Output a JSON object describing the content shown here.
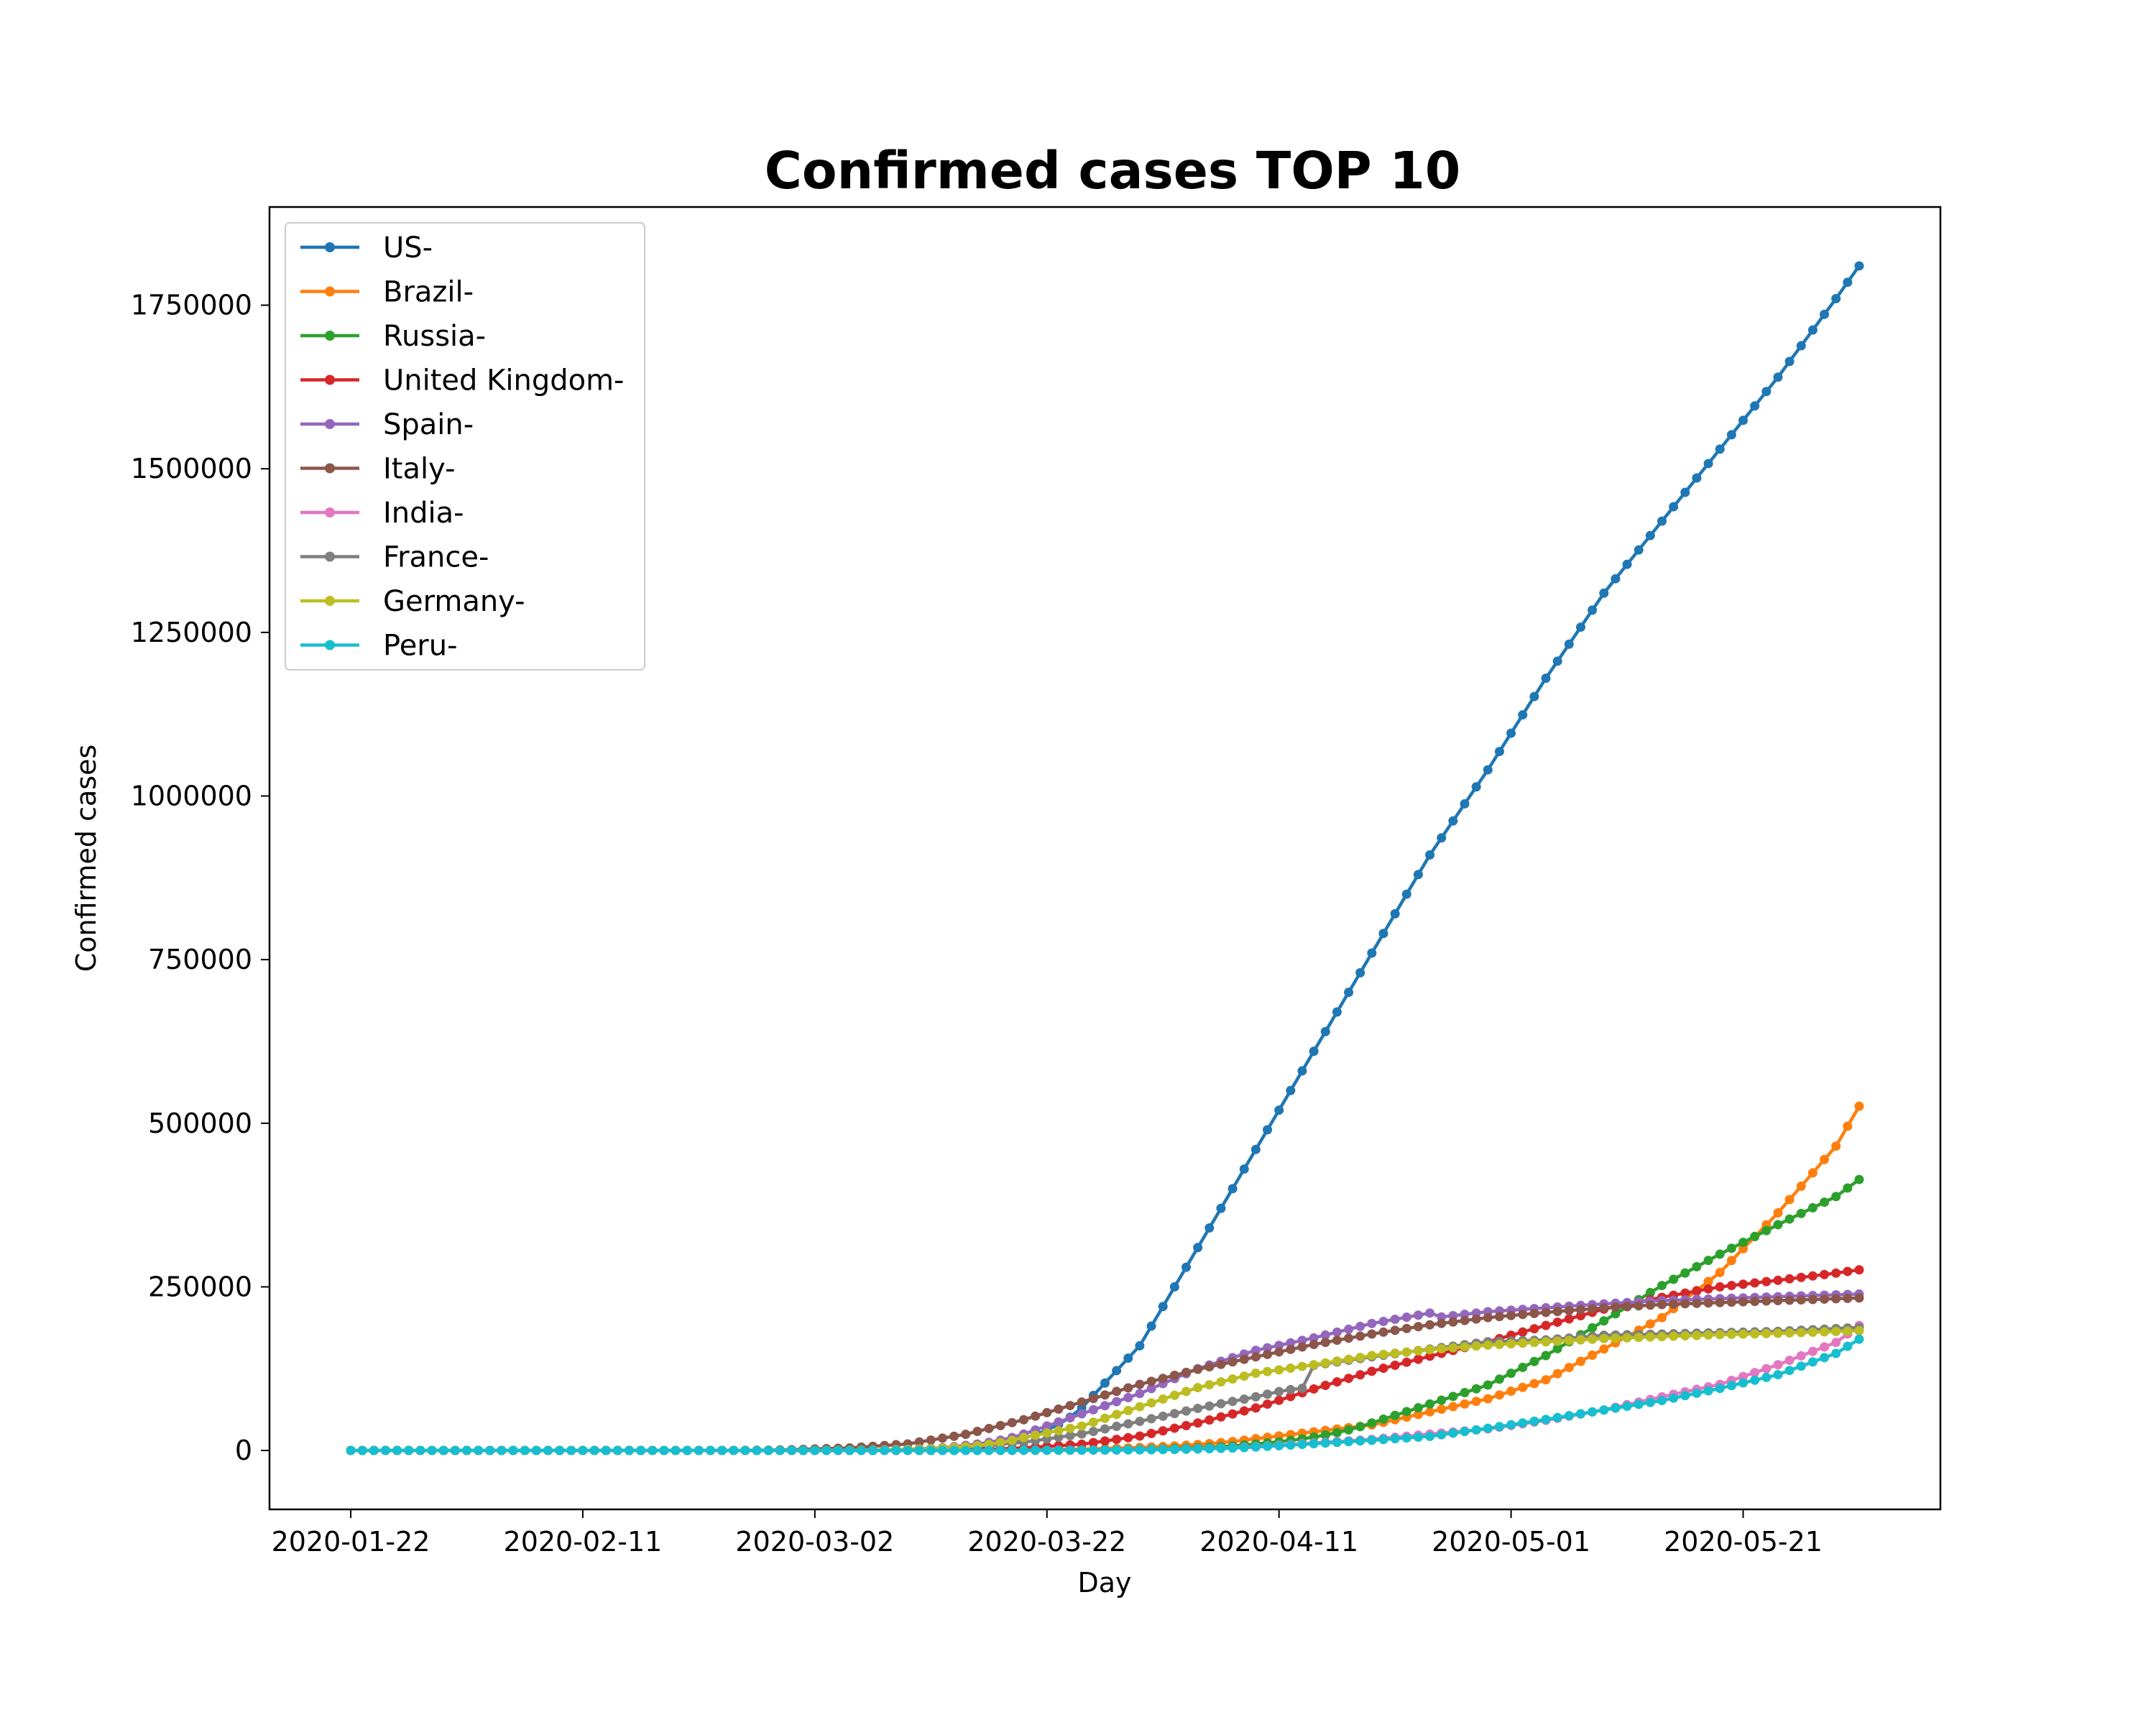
{
  "chart_data": {
    "type": "line",
    "title": "Confirmed cases TOP 10",
    "xlabel": "Day",
    "ylabel": "Confirmed cases",
    "x_start": "2020-01-22",
    "x_end": "2020-05-31",
    "xlim": [
      "2020-01-15",
      "2020-06-07"
    ],
    "ylim": [
      -90000,
      1900000
    ],
    "x_ticks": [
      "2020-01-22",
      "2020-02-11",
      "2020-03-02",
      "2020-03-22",
      "2020-04-11",
      "2020-05-01",
      "2020-05-21"
    ],
    "y_ticks": [
      0,
      250000,
      500000,
      750000,
      1000000,
      1250000,
      1500000,
      1750000
    ],
    "grid": false,
    "legend_position": "upper left",
    "series": [
      {
        "name": "US-",
        "color": "#1f77b4",
        "values": [
          [
            "2020-03-01",
            30
          ],
          [
            "2020-03-08",
            500
          ],
          [
            "2020-03-15",
            3500
          ],
          [
            "2020-03-20",
            19000
          ],
          [
            "2020-03-25",
            65000
          ],
          [
            "2020-03-30",
            160000
          ],
          [
            "2020-04-04",
            310000
          ],
          [
            "2020-04-09",
            460000
          ],
          [
            "2020-04-14",
            610000
          ],
          [
            "2020-04-19",
            760000
          ],
          [
            "2020-04-24",
            910000
          ],
          [
            "2020-04-29",
            1040000
          ],
          [
            "2020-05-04",
            1180000
          ],
          [
            "2020-05-09",
            1310000
          ],
          [
            "2020-05-14",
            1420000
          ],
          [
            "2020-05-19",
            1530000
          ],
          [
            "2020-05-24",
            1640000
          ],
          [
            "2020-05-29",
            1760000
          ],
          [
            "2020-05-31",
            1810000
          ]
        ]
      },
      {
        "name": "Brazil-",
        "color": "#ff7f0e",
        "values": [
          [
            "2020-03-10",
            30
          ],
          [
            "2020-03-20",
            1000
          ],
          [
            "2020-03-30",
            4600
          ],
          [
            "2020-04-09",
            18000
          ],
          [
            "2020-04-19",
            39000
          ],
          [
            "2020-04-29",
            79000
          ],
          [
            "2020-05-04",
            108000
          ],
          [
            "2020-05-09",
            155000
          ],
          [
            "2020-05-14",
            203000
          ],
          [
            "2020-05-19",
            272000
          ],
          [
            "2020-05-24",
            363000
          ],
          [
            "2020-05-29",
            465000
          ],
          [
            "2020-05-31",
            526000
          ]
        ]
      },
      {
        "name": "Russia-",
        "color": "#2ca02c",
        "values": [
          [
            "2020-03-10",
            20
          ],
          [
            "2020-03-20",
            250
          ],
          [
            "2020-03-30",
            1800
          ],
          [
            "2020-04-09",
            10000
          ],
          [
            "2020-04-19",
            42000
          ],
          [
            "2020-04-29",
            100000
          ],
          [
            "2020-05-04",
            145000
          ],
          [
            "2020-05-09",
            198000
          ],
          [
            "2020-05-14",
            252000
          ],
          [
            "2020-05-19",
            300000
          ],
          [
            "2020-05-24",
            345000
          ],
          [
            "2020-05-29",
            388000
          ],
          [
            "2020-05-31",
            414000
          ]
        ]
      },
      {
        "name": "United Kingdom-",
        "color": "#d62728",
        "values": [
          [
            "2020-03-01",
            40
          ],
          [
            "2020-03-10",
            400
          ],
          [
            "2020-03-20",
            4000
          ],
          [
            "2020-03-25",
            9500
          ],
          [
            "2020-03-30",
            22000
          ],
          [
            "2020-04-04",
            42000
          ],
          [
            "2020-04-09",
            65000
          ],
          [
            "2020-04-14",
            94000
          ],
          [
            "2020-04-19",
            121000
          ],
          [
            "2020-04-24",
            144000
          ],
          [
            "2020-04-29",
            166000
          ],
          [
            "2020-05-04",
            191000
          ],
          [
            "2020-05-09",
            216000
          ],
          [
            "2020-05-14",
            234000
          ],
          [
            "2020-05-19",
            250000
          ],
          [
            "2020-05-24",
            260000
          ],
          [
            "2020-05-29",
            271000
          ],
          [
            "2020-05-31",
            276000
          ]
        ]
      },
      {
        "name": "Spain-",
        "color": "#9467bd",
        "values": [
          [
            "2020-03-01",
            80
          ],
          [
            "2020-03-10",
            1700
          ],
          [
            "2020-03-15",
            7800
          ],
          [
            "2020-03-20",
            25000
          ],
          [
            "2020-03-25",
            56000
          ],
          [
            "2020-03-30",
            87000
          ],
          [
            "2020-04-04",
            125000
          ],
          [
            "2020-04-09",
            153000
          ],
          [
            "2020-04-14",
            172000
          ],
          [
            "2020-04-19",
            194000
          ],
          [
            "2020-04-24",
            210000
          ],
          [
            "2020-04-25",
            204000
          ],
          [
            "2020-04-29",
            212000
          ],
          [
            "2020-05-04",
            218000
          ],
          [
            "2020-05-09",
            224000
          ],
          [
            "2020-05-14",
            229000
          ],
          [
            "2020-05-19",
            232000
          ],
          [
            "2020-05-24",
            235000
          ],
          [
            "2020-05-31",
            239000
          ]
        ]
      },
      {
        "name": "Italy-",
        "color": "#8c564b",
        "values": [
          [
            "2020-02-20",
            3
          ],
          [
            "2020-02-25",
            320
          ],
          [
            "2020-03-01",
            1700
          ],
          [
            "2020-03-05",
            3900
          ],
          [
            "2020-03-10",
            10000
          ],
          [
            "2020-03-15",
            24700
          ],
          [
            "2020-03-20",
            47000
          ],
          [
            "2020-03-25",
            74000
          ],
          [
            "2020-03-30",
            101000
          ],
          [
            "2020-04-04",
            124000
          ],
          [
            "2020-04-09",
            143000
          ],
          [
            "2020-04-14",
            162000
          ],
          [
            "2020-04-19",
            178000
          ],
          [
            "2020-04-24",
            192000
          ],
          [
            "2020-04-29",
            203000
          ],
          [
            "2020-05-04",
            211000
          ],
          [
            "2020-05-09",
            218000
          ],
          [
            "2020-05-14",
            223000
          ],
          [
            "2020-05-19",
            226000
          ],
          [
            "2020-05-24",
            229000
          ],
          [
            "2020-05-31",
            233000
          ]
        ]
      },
      {
        "name": "India-",
        "color": "#e377c2",
        "values": [
          [
            "2020-03-10",
            50
          ],
          [
            "2020-03-20",
            250
          ],
          [
            "2020-03-30",
            1250
          ],
          [
            "2020-04-09",
            6000
          ],
          [
            "2020-04-19",
            17000
          ],
          [
            "2020-04-29",
            33000
          ],
          [
            "2020-05-04",
            46000
          ],
          [
            "2020-05-09",
            62000
          ],
          [
            "2020-05-14",
            82000
          ],
          [
            "2020-05-19",
            101000
          ],
          [
            "2020-05-24",
            131000
          ],
          [
            "2020-05-29",
            165000
          ],
          [
            "2020-05-31",
            191000
          ]
        ]
      },
      {
        "name": "France-",
        "color": "#7f7f7f",
        "values": [
          [
            "2020-03-01",
            130
          ],
          [
            "2020-03-10",
            1800
          ],
          [
            "2020-03-15",
            5400
          ],
          [
            "2020-03-20",
            12600
          ],
          [
            "2020-03-25",
            25200
          ],
          [
            "2020-03-30",
            44500
          ],
          [
            "2020-04-04",
            64300
          ],
          [
            "2020-04-09",
            82000
          ],
          [
            "2020-04-11",
            90000
          ],
          [
            "2020-04-12",
            93000
          ],
          [
            "2020-04-13",
            95000
          ],
          [
            "2020-04-14",
            130000
          ],
          [
            "2020-04-19",
            143000
          ],
          [
            "2020-04-24",
            155000
          ],
          [
            "2020-04-29",
            166000
          ],
          [
            "2020-05-04",
            169000
          ],
          [
            "2020-05-09",
            176000
          ],
          [
            "2020-05-14",
            178000
          ],
          [
            "2020-05-19",
            180000
          ],
          [
            "2020-05-24",
            182000
          ],
          [
            "2020-05-31",
            188000
          ]
        ]
      },
      {
        "name": "Germany-",
        "color": "#bcbd22",
        "values": [
          [
            "2020-03-01",
            130
          ],
          [
            "2020-03-10",
            1500
          ],
          [
            "2020-03-15",
            5800
          ],
          [
            "2020-03-20",
            19800
          ],
          [
            "2020-03-25",
            37300
          ],
          [
            "2020-03-30",
            66900
          ],
          [
            "2020-04-04",
            96000
          ],
          [
            "2020-04-09",
            118000
          ],
          [
            "2020-04-14",
            131000
          ],
          [
            "2020-04-19",
            145000
          ],
          [
            "2020-04-24",
            154000
          ],
          [
            "2020-04-29",
            161000
          ],
          [
            "2020-05-04",
            166000
          ],
          [
            "2020-05-09",
            171000
          ],
          [
            "2020-05-14",
            174000
          ],
          [
            "2020-05-19",
            177000
          ],
          [
            "2020-05-24",
            179000
          ],
          [
            "2020-05-31",
            183000
          ]
        ]
      },
      {
        "name": "Peru-",
        "color": "#17becf",
        "values": [
          [
            "2020-03-10",
            10
          ],
          [
            "2020-03-20",
            250
          ],
          [
            "2020-03-30",
            950
          ],
          [
            "2020-04-09",
            5300
          ],
          [
            "2020-04-14",
            10300
          ],
          [
            "2020-04-19",
            15600
          ],
          [
            "2020-04-24",
            21600
          ],
          [
            "2020-04-29",
            33900
          ],
          [
            "2020-05-04",
            47400
          ],
          [
            "2020-05-09",
            61800
          ],
          [
            "2020-05-14",
            76300
          ],
          [
            "2020-05-19",
            94900
          ],
          [
            "2020-05-24",
            115800
          ],
          [
            "2020-05-29",
            148300
          ],
          [
            "2020-05-31",
            170000
          ]
        ]
      }
    ]
  }
}
